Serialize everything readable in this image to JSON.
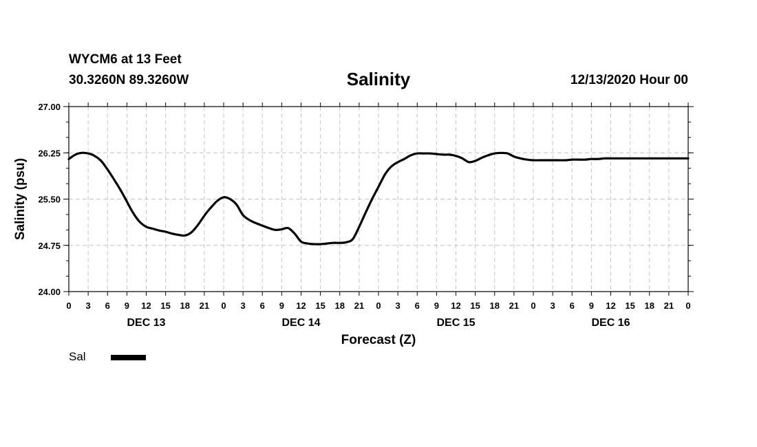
{
  "header": {
    "station": "WYCM6 at 13 Feet",
    "coords": "30.3260N 89.3260W",
    "title": "Salinity",
    "run": "12/13/2020 Hour 00"
  },
  "legend": {
    "label": "Sal",
    "color": "#000000"
  },
  "chart_data": {
    "type": "line",
    "title": "Salinity",
    "xlabel": "Forecast (Z)",
    "ylabel": "Salinity (psu)",
    "x_unit": "hours from 12/13/2020 00Z",
    "xlim": [
      0,
      96
    ],
    "ylim": [
      24.0,
      27.0
    ],
    "yticks": [
      "24.00",
      "24.75",
      "25.50",
      "26.25",
      "27.00"
    ],
    "xtick_labels": [
      "0",
      "3",
      "6",
      "9",
      "12",
      "15",
      "18",
      "21",
      "0",
      "3",
      "6",
      "9",
      "12",
      "15",
      "18",
      "21",
      "0",
      "3",
      "6",
      "9",
      "12",
      "15",
      "18",
      "21",
      "0",
      "3",
      "6",
      "9",
      "12",
      "15",
      "18",
      "21",
      "0"
    ],
    "day_labels": [
      {
        "hour": 12,
        "label": "DEC 13"
      },
      {
        "hour": 36,
        "label": "DEC 14"
      },
      {
        "hour": 60,
        "label": "DEC 15"
      },
      {
        "hour": 84,
        "label": "DEC 16"
      }
    ],
    "grid": true,
    "legend_position": "bottom-left",
    "series": [
      {
        "name": "Sal",
        "color": "#000000",
        "x": [
          0,
          1,
          2,
          3,
          4,
          5,
          6,
          7,
          8,
          9,
          10,
          11,
          12,
          13,
          14,
          15,
          16,
          17,
          18,
          19,
          20,
          21,
          22,
          23,
          24,
          25,
          26,
          27,
          28,
          29,
          30,
          31,
          32,
          33,
          34,
          35,
          36,
          37,
          38,
          39,
          40,
          41,
          42,
          43,
          44,
          45,
          46,
          47,
          48,
          49,
          50,
          51,
          52,
          53,
          54,
          55,
          56,
          57,
          58,
          59,
          60,
          61,
          62,
          63,
          64,
          65,
          66,
          67,
          68,
          69,
          70,
          71,
          72,
          73,
          74,
          75,
          76,
          77,
          78,
          79,
          80,
          81,
          82,
          83,
          84,
          85,
          86,
          87,
          88,
          89,
          90,
          91,
          92,
          93,
          94,
          95,
          96
        ],
        "y": [
          26.15,
          26.22,
          26.25,
          26.24,
          26.2,
          26.12,
          25.98,
          25.82,
          25.65,
          25.46,
          25.27,
          25.13,
          25.05,
          25.02,
          24.99,
          24.97,
          24.94,
          24.92,
          24.91,
          24.96,
          25.08,
          25.23,
          25.36,
          25.47,
          25.53,
          25.5,
          25.41,
          25.24,
          25.16,
          25.11,
          25.07,
          25.03,
          25.0,
          25.01,
          25.03,
          24.94,
          24.81,
          24.78,
          24.77,
          24.77,
          24.78,
          24.79,
          24.79,
          24.8,
          24.85,
          25.05,
          25.28,
          25.5,
          25.7,
          25.9,
          26.03,
          26.1,
          26.15,
          26.21,
          26.24,
          26.24,
          26.24,
          26.23,
          26.22,
          26.22,
          26.2,
          26.16,
          26.1,
          26.12,
          26.17,
          26.21,
          26.24,
          26.25,
          26.24,
          26.19,
          26.16,
          26.14,
          26.13,
          26.13,
          26.13,
          26.13,
          26.13,
          26.13,
          26.14,
          26.14,
          26.14,
          26.15,
          26.15,
          26.16,
          26.16,
          26.16,
          26.16,
          26.16,
          26.16,
          26.16,
          26.16,
          26.16,
          26.16,
          26.16,
          26.16,
          26.16,
          26.16
        ]
      }
    ]
  }
}
